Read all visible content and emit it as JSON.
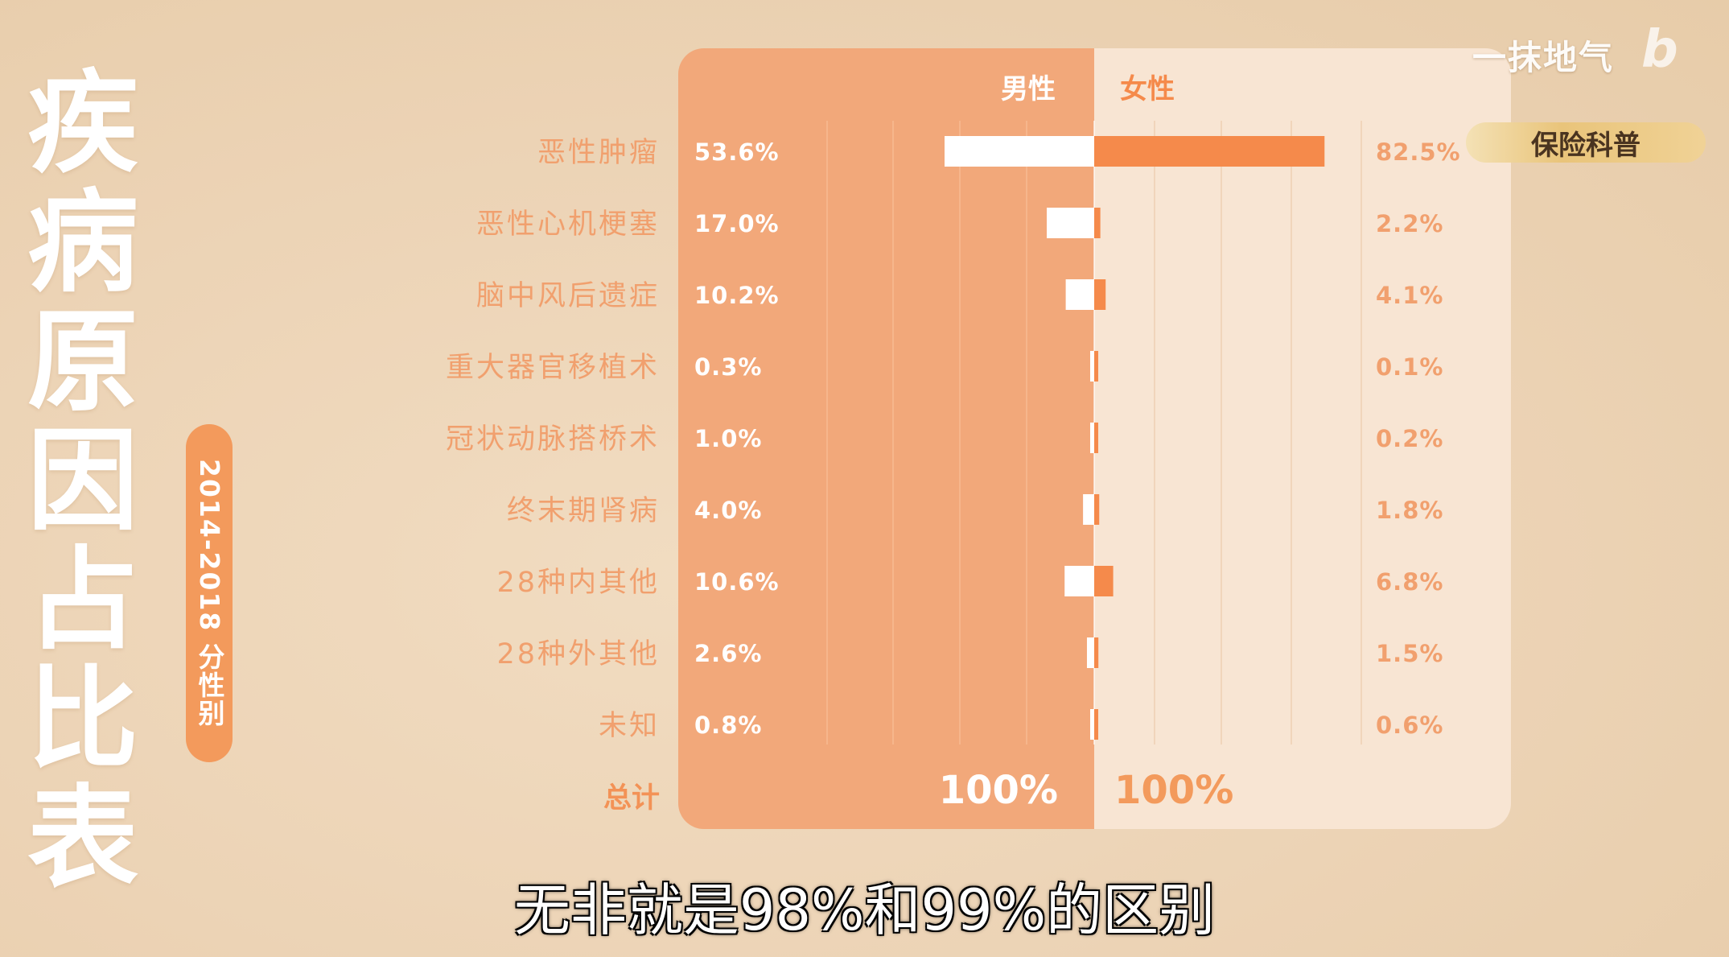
{
  "title": "疾病原因占比表",
  "period_label": "2014-2018 分性别",
  "channel_name": "一抹地气",
  "tag": "保险科普",
  "subtitle": "无非就是98%和99%的区别",
  "colors": {
    "male_panel": "#f2a87a",
    "female_panel": "#f8e5d3",
    "male_bar": "#ffffff",
    "female_bar": "#f58a4b",
    "label_text": "#f1a06e",
    "pill": "#f39a5c"
  },
  "chart_data": {
    "type": "bar",
    "orientation": "horizontal-diverging",
    "series": [
      {
        "name": "男性",
        "values": [
          53.6,
          17.0,
          10.2,
          0.3,
          1.0,
          4.0,
          10.6,
          2.6,
          0.8
        ]
      },
      {
        "name": "女性",
        "values": [
          82.5,
          2.2,
          4.1,
          0.1,
          0.2,
          1.8,
          6.8,
          1.5,
          0.6
        ]
      }
    ],
    "categories": [
      "恶性肿瘤",
      "恶性心机梗塞",
      "脑中风后遗症",
      "重大器官移植术",
      "冠状动脉搭桥术",
      "终末期肾病",
      "28种内其他",
      "28种外其他",
      "未知"
    ],
    "value_labels_male": [
      "53.6%",
      "17.0%",
      "10.2%",
      "0.3%",
      "1.0%",
      "4.0%",
      "10.6%",
      "2.6%",
      "0.8%"
    ],
    "value_labels_female": [
      "82.5%",
      "2.2%",
      "4.1%",
      "0.1%",
      "0.2%",
      "1.8%",
      "6.8%",
      "1.5%",
      "0.6%"
    ],
    "total_label": "总计",
    "total_male": "100%",
    "total_female": "100%",
    "xlim": [
      0,
      100
    ],
    "grid": true
  }
}
